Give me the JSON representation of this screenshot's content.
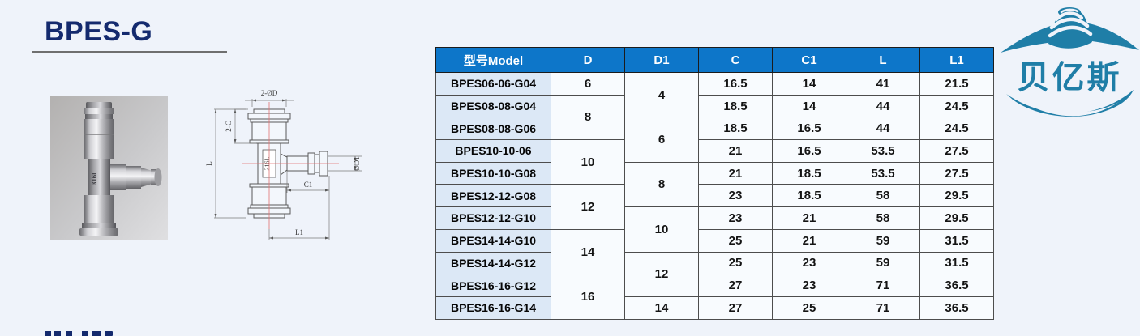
{
  "page": {
    "title": "BPES-G",
    "background_color": "#eff3fa",
    "title_color": "#142a6e"
  },
  "colors": {
    "table_header_blue": "#0d76c9",
    "model_column_blue": "#dce8f6",
    "logo_teal": "#1f7ea7",
    "centerline_red": "#e07070"
  },
  "logo": {
    "text": "贝亿斯"
  },
  "photo": {
    "stamp": "316L"
  },
  "drawing": {
    "dim_top_ports": "2-ØD",
    "dim_collet_len": "2-C",
    "dim_overall_len": "L",
    "dim_branch_dia": "ØD1",
    "dim_branch_len": "C1",
    "dim_branch_offset": "L1",
    "stamp": "316L"
  },
  "table": {
    "headers": [
      "型号Model",
      "D",
      "D1",
      "C",
      "C1",
      "L",
      "L1"
    ],
    "rows": [
      [
        {
          "t": "BPES06-06-G04",
          "c": "model"
        },
        {
          "t": "6"
        },
        {
          "t": "4",
          "r": 2
        },
        {
          "t": "16.5"
        },
        {
          "t": "14"
        },
        {
          "t": "41"
        },
        {
          "t": "21.5"
        }
      ],
      [
        {
          "t": "BPES08-08-G04",
          "c": "model"
        },
        {
          "t": "8",
          "r": 2
        },
        {
          "t": "18.5"
        },
        {
          "t": "14"
        },
        {
          "t": "44"
        },
        {
          "t": "24.5"
        }
      ],
      [
        {
          "t": "BPES08-08-G06",
          "c": "model"
        },
        {
          "t": "6",
          "r": 2
        },
        {
          "t": "18.5"
        },
        {
          "t": "16.5"
        },
        {
          "t": "44"
        },
        {
          "t": "24.5"
        }
      ],
      [
        {
          "t": "BPES10-10-06",
          "c": "model"
        },
        {
          "t": "10",
          "r": 2
        },
        {
          "t": "21"
        },
        {
          "t": "16.5"
        },
        {
          "t": "53.5"
        },
        {
          "t": "27.5"
        }
      ],
      [
        {
          "t": "BPES10-10-G08",
          "c": "model"
        },
        {
          "t": "8",
          "r": 2
        },
        {
          "t": "21"
        },
        {
          "t": "18.5"
        },
        {
          "t": "53.5"
        },
        {
          "t": "27.5"
        }
      ],
      [
        {
          "t": "BPES12-12-G08",
          "c": "model"
        },
        {
          "t": "12",
          "r": 2
        },
        {
          "t": "23"
        },
        {
          "t": "18.5"
        },
        {
          "t": "58"
        },
        {
          "t": "29.5"
        }
      ],
      [
        {
          "t": "BPES12-12-G10",
          "c": "model"
        },
        {
          "t": "10",
          "r": 2
        },
        {
          "t": "23"
        },
        {
          "t": "21"
        },
        {
          "t": "58"
        },
        {
          "t": "29.5"
        }
      ],
      [
        {
          "t": "BPES14-14-G10",
          "c": "model"
        },
        {
          "t": "14",
          "r": 2
        },
        {
          "t": "25"
        },
        {
          "t": "21"
        },
        {
          "t": "59"
        },
        {
          "t": "31.5"
        }
      ],
      [
        {
          "t": "BPES14-14-G12",
          "c": "model"
        },
        {
          "t": "12",
          "r": 2
        },
        {
          "t": "25"
        },
        {
          "t": "23"
        },
        {
          "t": "59"
        },
        {
          "t": "31.5"
        }
      ],
      [
        {
          "t": "BPES16-16-G12",
          "c": "model"
        },
        {
          "t": "16",
          "r": 2
        },
        {
          "t": "27"
        },
        {
          "t": "23"
        },
        {
          "t": "71"
        },
        {
          "t": "36.5"
        }
      ],
      [
        {
          "t": "BPES16-16-G14",
          "c": "model"
        },
        {
          "t": "14"
        },
        {
          "t": "27"
        },
        {
          "t": "25"
        },
        {
          "t": "71"
        },
        {
          "t": "36.5"
        }
      ]
    ]
  }
}
